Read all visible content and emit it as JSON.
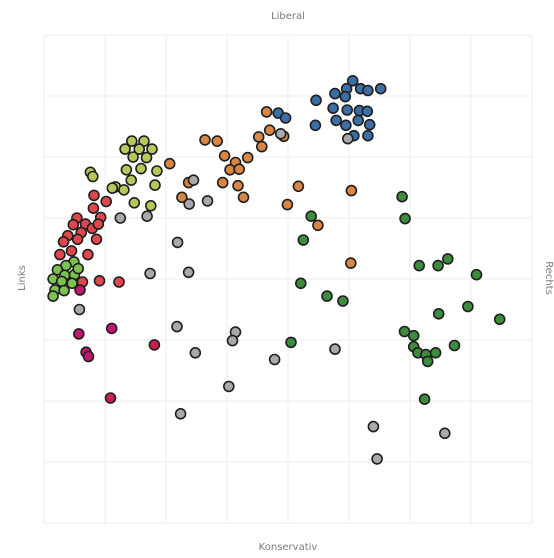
{
  "chart_data": {
    "type": "scatter",
    "title": "",
    "axis_labels": {
      "top": "Liberal",
      "bottom": "Konservativ",
      "left": "Links",
      "right": "Rechts"
    },
    "xlim": [
      0,
      8
    ],
    "ylim": [
      0,
      8
    ],
    "grid": true,
    "colors": {
      "blue": "#3a6ea5",
      "orange": "#d98544",
      "yellow_green": "#b5c95a",
      "red": "#e0474c",
      "light_green": "#7cc24e",
      "magenta": "#c4166e",
      "crimson": "#cc1f4f",
      "gray": "#a9a9a9",
      "green": "#3d8b3d"
    },
    "points": [
      {
        "x": 5.06,
        "y": 7.25,
        "color": "blue"
      },
      {
        "x": 4.96,
        "y": 7.12,
        "color": "blue"
      },
      {
        "x": 4.77,
        "y": 7.04,
        "color": "blue"
      },
      {
        "x": 5.19,
        "y": 7.12,
        "color": "blue"
      },
      {
        "x": 5.31,
        "y": 7.09,
        "color": "blue"
      },
      {
        "x": 5.52,
        "y": 7.12,
        "color": "blue"
      },
      {
        "x": 4.94,
        "y": 6.99,
        "color": "blue"
      },
      {
        "x": 4.46,
        "y": 6.93,
        "color": "blue"
      },
      {
        "x": 4.74,
        "y": 6.8,
        "color": "blue"
      },
      {
        "x": 4.97,
        "y": 6.77,
        "color": "blue"
      },
      {
        "x": 5.17,
        "y": 6.76,
        "color": "blue"
      },
      {
        "x": 5.3,
        "y": 6.75,
        "color": "blue"
      },
      {
        "x": 4.79,
        "y": 6.6,
        "color": "blue"
      },
      {
        "x": 4.95,
        "y": 6.52,
        "color": "blue"
      },
      {
        "x": 5.15,
        "y": 6.6,
        "color": "blue"
      },
      {
        "x": 5.34,
        "y": 6.53,
        "color": "blue"
      },
      {
        "x": 3.84,
        "y": 6.72,
        "color": "blue"
      },
      {
        "x": 3.96,
        "y": 6.64,
        "color": "blue"
      },
      {
        "x": 4.45,
        "y": 6.52,
        "color": "blue"
      },
      {
        "x": 5.08,
        "y": 6.35,
        "color": "blue"
      },
      {
        "x": 5.31,
        "y": 6.35,
        "color": "blue"
      },
      {
        "x": 4.98,
        "y": 6.3,
        "color": "gray"
      },
      {
        "x": 3.65,
        "y": 6.74,
        "color": "orange"
      },
      {
        "x": 3.7,
        "y": 6.44,
        "color": "orange"
      },
      {
        "x": 3.52,
        "y": 6.33,
        "color": "orange"
      },
      {
        "x": 3.93,
        "y": 6.34,
        "color": "orange"
      },
      {
        "x": 2.64,
        "y": 6.28,
        "color": "orange"
      },
      {
        "x": 2.84,
        "y": 6.26,
        "color": "orange"
      },
      {
        "x": 2.96,
        "y": 6.02,
        "color": "orange"
      },
      {
        "x": 3.57,
        "y": 6.17,
        "color": "orange"
      },
      {
        "x": 3.34,
        "y": 5.99,
        "color": "orange"
      },
      {
        "x": 3.14,
        "y": 5.91,
        "color": "orange"
      },
      {
        "x": 3.05,
        "y": 5.79,
        "color": "orange"
      },
      {
        "x": 3.2,
        "y": 5.8,
        "color": "orange"
      },
      {
        "x": 2.93,
        "y": 5.58,
        "color": "orange"
      },
      {
        "x": 3.18,
        "y": 5.53,
        "color": "orange"
      },
      {
        "x": 4.17,
        "y": 5.52,
        "color": "orange"
      },
      {
        "x": 5.04,
        "y": 5.45,
        "color": "orange"
      },
      {
        "x": 3.27,
        "y": 5.34,
        "color": "orange"
      },
      {
        "x": 3.99,
        "y": 5.22,
        "color": "orange"
      },
      {
        "x": 2.37,
        "y": 5.58,
        "color": "orange"
      },
      {
        "x": 2.26,
        "y": 5.34,
        "color": "orange"
      },
      {
        "x": 2.06,
        "y": 5.89,
        "color": "orange"
      },
      {
        "x": 4.49,
        "y": 4.88,
        "color": "orange"
      },
      {
        "x": 5.03,
        "y": 4.26,
        "color": "orange"
      },
      {
        "x": 3.88,
        "y": 6.38,
        "color": "gray"
      },
      {
        "x": 2.45,
        "y": 5.62,
        "color": "gray"
      },
      {
        "x": 2.68,
        "y": 5.28,
        "color": "gray"
      },
      {
        "x": 2.38,
        "y": 5.23,
        "color": "gray"
      },
      {
        "x": 1.44,
        "y": 6.26,
        "color": "yellow_green"
      },
      {
        "x": 1.64,
        "y": 6.26,
        "color": "yellow_green"
      },
      {
        "x": 1.56,
        "y": 6.13,
        "color": "yellow_green"
      },
      {
        "x": 1.77,
        "y": 6.13,
        "color": "yellow_green"
      },
      {
        "x": 1.33,
        "y": 6.13,
        "color": "yellow_green"
      },
      {
        "x": 1.46,
        "y": 6.0,
        "color": "yellow_green"
      },
      {
        "x": 1.68,
        "y": 5.99,
        "color": "yellow_green"
      },
      {
        "x": 1.35,
        "y": 5.79,
        "color": "yellow_green"
      },
      {
        "x": 1.59,
        "y": 5.81,
        "color": "yellow_green"
      },
      {
        "x": 1.85,
        "y": 5.77,
        "color": "yellow_green"
      },
      {
        "x": 1.43,
        "y": 5.62,
        "color": "yellow_green"
      },
      {
        "x": 1.17,
        "y": 5.51,
        "color": "yellow_green"
      },
      {
        "x": 0.76,
        "y": 5.75,
        "color": "yellow_green"
      },
      {
        "x": 0.8,
        "y": 5.68,
        "color": "yellow_green"
      },
      {
        "x": 1.12,
        "y": 5.49,
        "color": "yellow_green"
      },
      {
        "x": 1.75,
        "y": 5.2,
        "color": "yellow_green"
      },
      {
        "x": 1.48,
        "y": 5.25,
        "color": "yellow_green"
      },
      {
        "x": 1.82,
        "y": 5.54,
        "color": "yellow_green"
      },
      {
        "x": 1.31,
        "y": 5.46,
        "color": "yellow_green"
      },
      {
        "x": 1.25,
        "y": 5.0,
        "color": "gray"
      },
      {
        "x": 1.69,
        "y": 5.03,
        "color": "gray"
      },
      {
        "x": 0.82,
        "y": 5.37,
        "color": "red"
      },
      {
        "x": 1.02,
        "y": 5.27,
        "color": "red"
      },
      {
        "x": 0.81,
        "y": 5.16,
        "color": "red"
      },
      {
        "x": 0.54,
        "y": 5.0,
        "color": "red"
      },
      {
        "x": 0.93,
        "y": 5.01,
        "color": "red"
      },
      {
        "x": 0.68,
        "y": 4.9,
        "color": "red"
      },
      {
        "x": 0.48,
        "y": 4.89,
        "color": "red"
      },
      {
        "x": 0.79,
        "y": 4.83,
        "color": "red"
      },
      {
        "x": 0.61,
        "y": 4.76,
        "color": "red"
      },
      {
        "x": 0.39,
        "y": 4.71,
        "color": "red"
      },
      {
        "x": 0.55,
        "y": 4.65,
        "color": "red"
      },
      {
        "x": 0.32,
        "y": 4.61,
        "color": "red"
      },
      {
        "x": 0.45,
        "y": 4.46,
        "color": "red"
      },
      {
        "x": 0.72,
        "y": 4.4,
        "color": "red"
      },
      {
        "x": 0.26,
        "y": 4.4,
        "color": "red"
      },
      {
        "x": 0.89,
        "y": 4.9,
        "color": "red"
      },
      {
        "x": 0.86,
        "y": 4.65,
        "color": "red"
      },
      {
        "x": 1.23,
        "y": 3.95,
        "color": "red"
      },
      {
        "x": 0.91,
        "y": 3.97,
        "color": "red"
      },
      {
        "x": 0.63,
        "y": 3.95,
        "color": "red"
      },
      {
        "x": 0.49,
        "y": 4.28,
        "color": "light_green"
      },
      {
        "x": 0.36,
        "y": 4.22,
        "color": "light_green"
      },
      {
        "x": 0.22,
        "y": 4.15,
        "color": "light_green"
      },
      {
        "x": 0.34,
        "y": 4.06,
        "color": "light_green"
      },
      {
        "x": 0.5,
        "y": 4.07,
        "color": "light_green"
      },
      {
        "x": 0.15,
        "y": 4.0,
        "color": "light_green"
      },
      {
        "x": 0.29,
        "y": 3.96,
        "color": "light_green"
      },
      {
        "x": 0.46,
        "y": 3.93,
        "color": "light_green"
      },
      {
        "x": 0.18,
        "y": 3.82,
        "color": "light_green"
      },
      {
        "x": 0.33,
        "y": 3.81,
        "color": "light_green"
      },
      {
        "x": 0.15,
        "y": 3.72,
        "color": "light_green"
      },
      {
        "x": 0.56,
        "y": 4.17,
        "color": "light_green"
      },
      {
        "x": 0.59,
        "y": 3.82,
        "color": "magenta"
      },
      {
        "x": 0.58,
        "y": 3.5,
        "color": "gray"
      },
      {
        "x": 1.11,
        "y": 3.19,
        "color": "magenta"
      },
      {
        "x": 0.57,
        "y": 3.1,
        "color": "magenta"
      },
      {
        "x": 0.69,
        "y": 2.8,
        "color": "magenta"
      },
      {
        "x": 0.73,
        "y": 2.73,
        "color": "magenta"
      },
      {
        "x": 1.81,
        "y": 2.92,
        "color": "crimson"
      },
      {
        "x": 1.09,
        "y": 2.05,
        "color": "crimson"
      },
      {
        "x": 2.19,
        "y": 4.6,
        "color": "gray"
      },
      {
        "x": 1.74,
        "y": 4.09,
        "color": "gray"
      },
      {
        "x": 2.37,
        "y": 4.11,
        "color": "gray"
      },
      {
        "x": 2.18,
        "y": 3.22,
        "color": "gray"
      },
      {
        "x": 2.48,
        "y": 2.79,
        "color": "gray"
      },
      {
        "x": 3.14,
        "y": 3.13,
        "color": "gray"
      },
      {
        "x": 3.09,
        "y": 2.99,
        "color": "gray"
      },
      {
        "x": 3.03,
        "y": 2.24,
        "color": "gray"
      },
      {
        "x": 2.24,
        "y": 1.79,
        "color": "gray"
      },
      {
        "x": 3.78,
        "y": 2.68,
        "color": "gray"
      },
      {
        "x": 4.77,
        "y": 2.85,
        "color": "gray"
      },
      {
        "x": 5.4,
        "y": 1.58,
        "color": "gray"
      },
      {
        "x": 5.46,
        "y": 1.05,
        "color": "gray"
      },
      {
        "x": 6.57,
        "y": 1.47,
        "color": "gray"
      },
      {
        "x": 4.38,
        "y": 5.03,
        "color": "green"
      },
      {
        "x": 4.25,
        "y": 4.64,
        "color": "green"
      },
      {
        "x": 5.87,
        "y": 5.35,
        "color": "green"
      },
      {
        "x": 5.92,
        "y": 4.99,
        "color": "green"
      },
      {
        "x": 6.15,
        "y": 4.22,
        "color": "green"
      },
      {
        "x": 6.46,
        "y": 4.22,
        "color": "green"
      },
      {
        "x": 6.62,
        "y": 4.33,
        "color": "green"
      },
      {
        "x": 7.09,
        "y": 4.07,
        "color": "green"
      },
      {
        "x": 4.21,
        "y": 3.93,
        "color": "green"
      },
      {
        "x": 4.64,
        "y": 3.72,
        "color": "green"
      },
      {
        "x": 4.9,
        "y": 3.64,
        "color": "green"
      },
      {
        "x": 6.95,
        "y": 3.55,
        "color": "green"
      },
      {
        "x": 6.47,
        "y": 3.43,
        "color": "green"
      },
      {
        "x": 7.47,
        "y": 3.34,
        "color": "green"
      },
      {
        "x": 5.91,
        "y": 3.14,
        "color": "green"
      },
      {
        "x": 6.06,
        "y": 3.07,
        "color": "green"
      },
      {
        "x": 6.06,
        "y": 2.89,
        "color": "green"
      },
      {
        "x": 6.13,
        "y": 2.79,
        "color": "green"
      },
      {
        "x": 6.26,
        "y": 2.76,
        "color": "green"
      },
      {
        "x": 6.42,
        "y": 2.79,
        "color": "green"
      },
      {
        "x": 6.73,
        "y": 2.91,
        "color": "green"
      },
      {
        "x": 6.29,
        "y": 2.65,
        "color": "green"
      },
      {
        "x": 4.05,
        "y": 2.96,
        "color": "green"
      },
      {
        "x": 6.24,
        "y": 2.03,
        "color": "green"
      }
    ]
  }
}
